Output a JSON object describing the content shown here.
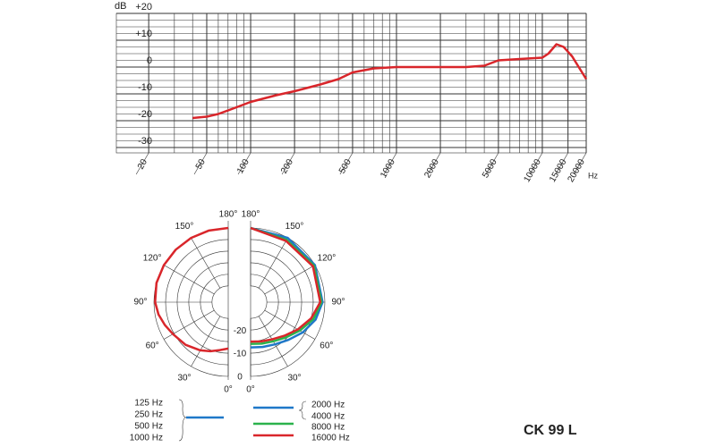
{
  "chart_data": [
    {
      "type": "line",
      "x_scale": "log",
      "y_label": "dB",
      "x_label": "Hz",
      "xlim": [
        12,
        20000
      ],
      "ylim": [
        -32,
        20
      ],
      "xticks": [
        20,
        50,
        100,
        200,
        500,
        1000,
        2000,
        5000,
        10000,
        15000,
        20000
      ],
      "xminorticks": [
        30,
        40,
        60,
        70,
        80,
        90,
        300,
        400,
        600,
        700,
        800,
        900,
        3000,
        4000,
        6000,
        7000,
        8000,
        9000
      ],
      "yticks": [
        {
          "value": 20,
          "label": "+20"
        },
        {
          "value": 10,
          "label": "+10"
        },
        0,
        -10,
        -20,
        -30
      ],
      "yminorticks": [
        17.5,
        15,
        12.5,
        7.5,
        5,
        2.5,
        -2.5,
        -5,
        -7.5,
        -12.5,
        -15,
        -17.5,
        -22.5,
        -25,
        -27.5
      ],
      "grid": true,
      "series": [
        {
          "color": "#d9262b",
          "x": [
            40,
            50,
            60,
            80,
            100,
            150,
            200,
            300,
            400,
            500,
            700,
            1000,
            2000,
            3000,
            4000,
            5000,
            7000,
            10000,
            11000,
            12500,
            14000,
            16000,
            20000
          ],
          "values": [
            -19,
            -18.5,
            -17.5,
            -15,
            -13,
            -10.5,
            -9,
            -6.5,
            -4.5,
            -2,
            -0.5,
            0,
            0,
            0,
            0.5,
            2.5,
            3,
            3.5,
            5,
            8.5,
            7.5,
            4,
            -4.5
          ]
        }
      ]
    },
    {
      "type": "polar",
      "rlim": [
        -32,
        0
      ],
      "rticks": [
        -20,
        -10,
        0
      ],
      "rgrid": [
        -25,
        -20,
        -15,
        -10,
        -5,
        0
      ],
      "angle_ticks": [
        {
          "value": 180,
          "label": "180°"
        },
        {
          "value": 150,
          "label": "150°"
        },
        {
          "value": 120,
          "label": "120°"
        },
        {
          "value": 90,
          "label": "90°"
        },
        {
          "value": 60,
          "label": "60°"
        },
        {
          "value": 30,
          "label": "30°"
        },
        {
          "value": 0,
          "label": "0°"
        }
      ],
      "series": [
        {
          "side": "left",
          "color": "#d9262b",
          "angles": [
            0,
            10,
            20,
            30,
            45,
            60,
            70,
            80,
            90,
            105,
            120,
            135,
            150,
            165,
            180
          ],
          "values": [
            -12,
            -11,
            -9.5,
            -8,
            -6,
            -4.5,
            -3,
            -1.5,
            -0.5,
            0,
            0,
            0,
            0,
            0,
            0
          ]
        },
        {
          "side": "right",
          "color": "#1f78c8",
          "angles": [
            0,
            15,
            30,
            45,
            60,
            75,
            90,
            120,
            150,
            180
          ],
          "values": [
            -12.5,
            -12,
            -11,
            -9,
            -6,
            -3,
            -1,
            0,
            0,
            0
          ]
        },
        {
          "side": "right",
          "color": "#2bb24c",
          "angles": [
            0,
            15,
            30,
            45,
            60,
            75,
            90,
            120,
            150,
            180
          ],
          "values": [
            -14,
            -13.5,
            -12.5,
            -10.5,
            -7.5,
            -4,
            -1.5,
            -0.5,
            -1,
            0
          ]
        },
        {
          "side": "right",
          "color": "#d9262b",
          "angles": [
            0,
            15,
            30,
            45,
            60,
            75,
            90,
            120,
            150,
            180
          ],
          "values": [
            -15,
            -14.5,
            -13.5,
            -11.5,
            -8.5,
            -5,
            -2,
            -1,
            -1.5,
            0
          ]
        }
      ],
      "legend": [
        {
          "labels": [
            "125 Hz",
            "250 Hz",
            "500 Hz",
            "1000 Hz"
          ],
          "color": "#1f78c8"
        },
        {
          "labels": [
            "2000 Hz",
            "4000 Hz"
          ],
          "color": "#1f78c8"
        },
        {
          "labels": [
            "8000 Hz"
          ],
          "color": "#2bb24c"
        },
        {
          "labels": [
            "16000 Hz"
          ],
          "color": "#d9262b"
        }
      ]
    }
  ],
  "model": "CK 99 L"
}
